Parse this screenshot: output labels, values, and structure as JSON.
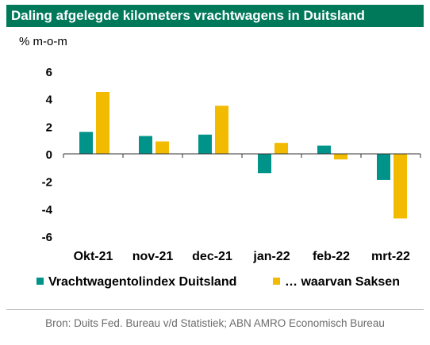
{
  "title": "Daling afgelegde kilometers vrachtwagens in Duitsland",
  "unit_label": "% m-o-m",
  "source": "Bron: Duits Fed. Bureau v/d Statistiek; ABN AMRO Economisch Bureau",
  "colors": {
    "header": "#00795b",
    "series1": "#00938a",
    "series2": "#f2bb00"
  },
  "chart_data": {
    "type": "bar",
    "categories": [
      "Okt-21",
      "nov-21",
      "dec-21",
      "jan-22",
      "feb-22",
      "mrt-22"
    ],
    "series": [
      {
        "name": "Vrachtwagentolindex Duitsland",
        "values": [
          1.6,
          1.3,
          1.4,
          -1.4,
          0.6,
          -1.9
        ]
      },
      {
        "name": "… waarvan Saksen",
        "values": [
          4.5,
          0.9,
          3.5,
          0.8,
          -0.4,
          -4.7
        ]
      }
    ],
    "yticks": [
      6,
      4,
      2,
      0,
      -2,
      -4,
      -6
    ],
    "ylim": [
      -6,
      6
    ],
    "grid": false,
    "legend_position": "bottom"
  }
}
